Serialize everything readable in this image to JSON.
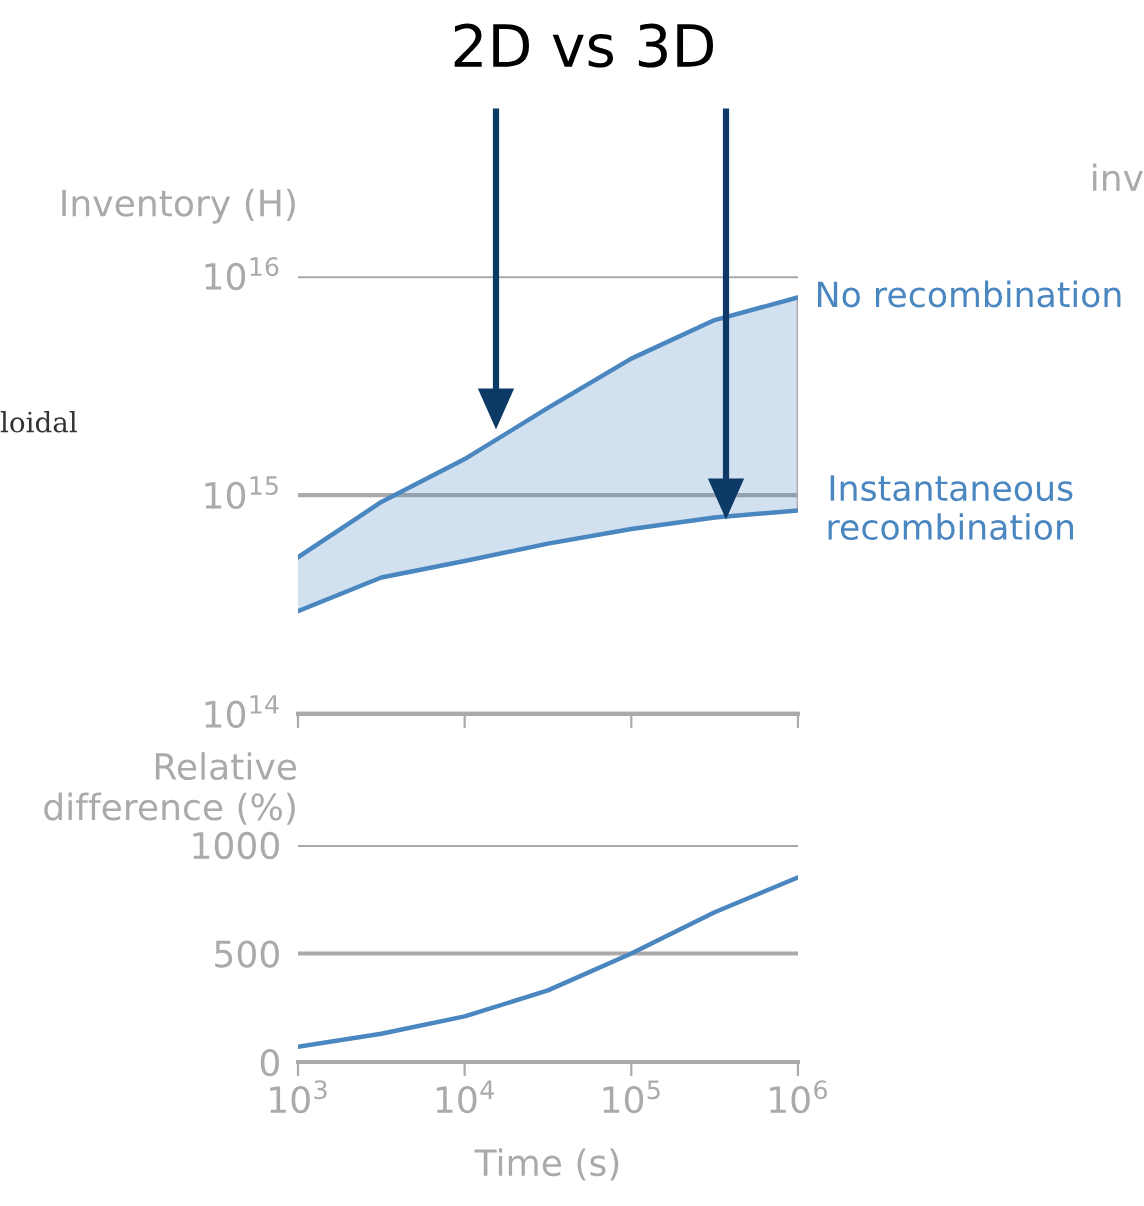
{
  "chart_data": [
    {
      "type": "line",
      "title": "2D vs 3D",
      "ylabel": "Inventory (H)",
      "log": "xy",
      "grid": "y",
      "legend": false,
      "tick_labels": "y",
      "marker": "none",
      "line_style": "solid",
      "annotations": [
        "loidal",
        "inv"
      ],
      "xlim": [
        1000,
        1000000
      ],
      "xticks": [
        {
          "value": 1000,
          "label": null
        },
        {
          "value": 10000,
          "label": null
        },
        {
          "value": 100000,
          "label": null
        },
        {
          "value": 1000000,
          "label": null
        }
      ],
      "ylim": [
        100000000000000.0,
        1e+16
      ],
      "yticks": [
        {
          "value": 100000000000000.0,
          "label": "10$^{14}$"
        },
        {
          "value": 1000000000000000.0,
          "label": "10$^{15}$"
        },
        {
          "value": 1e+16,
          "label": "10$^{16}$"
        }
      ],
      "x": [
        1000,
        3162,
        10000,
        31623,
        100000,
        316228,
        1000000
      ],
      "series": [
        {
          "name": "No recombination",
          "color": "#4a86c0",
          "values": [
            520000000000000.0,
            930000000000000.0,
            1460000000000000.0,
            2500000000000000.0,
            4200000000000000.0,
            6300000000000000.0,
            8000000000000000.0
          ],
          "lower": [
            295000000000000.0,
            420000000000000.0,
            500000000000000.0,
            600000000000000.0,
            700000000000000.0,
            790000000000000.0,
            850000000000000.0
          ],
          "upper": [
            520000000000000.0,
            930000000000000.0,
            1460000000000000.0,
            2500000000000000.0,
            4200000000000000.0,
            6300000000000000.0,
            8000000000000000.0
          ]
        },
        {
          "name": "Instantaneous\nrecombination",
          "color": "#4a86c0",
          "values": [
            295000000000000.0,
            420000000000000.0,
            500000000000000.0,
            600000000000000.0,
            700000000000000.0,
            790000000000000.0,
            850000000000000.0
          ]
        }
      ]
    },
    {
      "type": "line",
      "ylabel": "Relative\ndifference (%)",
      "xlabel": "Time (s)",
      "log": "x",
      "grid": "y",
      "marker": "none",
      "line_style": "solid",
      "xlim": [
        1000,
        1000000
      ],
      "xticks": [
        {
          "value": 1000,
          "label": "10$^{3}$"
        },
        {
          "value": 10000,
          "label": "10$^{4}$"
        },
        {
          "value": 100000,
          "label": "10$^{5}$"
        },
        {
          "value": 1000000,
          "label": "10$^{6}$"
        }
      ],
      "ylim": [
        0,
        1000
      ],
      "yticks": [
        0,
        500,
        1000
      ],
      "x": [
        1000,
        3162,
        10000,
        31623,
        100000,
        316228,
        1000000
      ],
      "series": [
        {
          "color": "#4a86c0",
          "values": [
            70,
            130,
            210,
            330,
            500,
            690,
            850
          ]
        }
      ]
    }
  ]
}
